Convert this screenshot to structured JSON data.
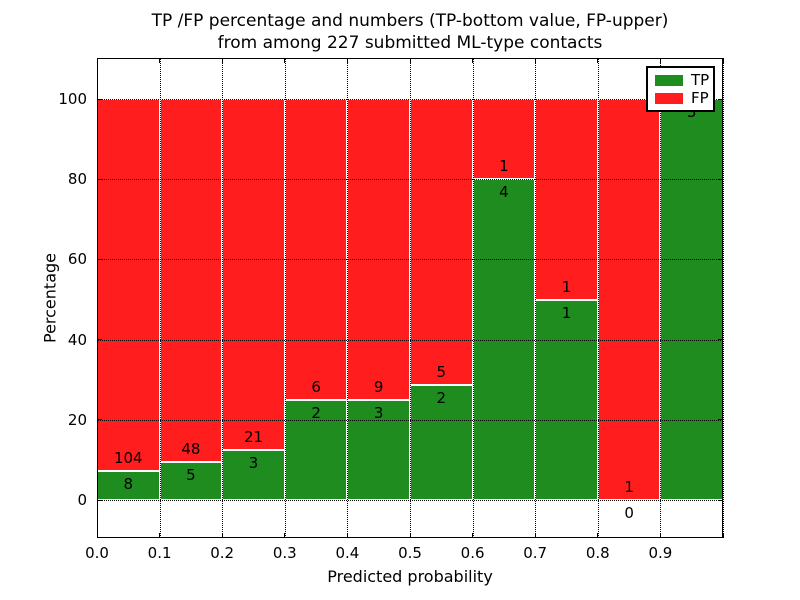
{
  "title": {
    "line1": "TP /FP percentage and numbers (TP-bottom value, FP-upper)",
    "line2": "from among 227 submitted ML-type contacts"
  },
  "axes": {
    "y_label": "Percentage",
    "x_label": "Predicted probability",
    "x_tick_labels": [
      "0.0",
      "0.1",
      "0.2",
      "0.3",
      "0.4",
      "0.5",
      "0.6",
      "0.7",
      "0.8",
      "0.9"
    ],
    "y_tick_labels": [
      "0",
      "20",
      "40",
      "60",
      "80",
      "100"
    ]
  },
  "legend": {
    "items": [
      {
        "label": "TP",
        "color": "#1e8c1e"
      },
      {
        "label": "FP",
        "color": "#ff1d1d"
      }
    ]
  },
  "chart_data": {
    "type": "bar",
    "stacked": true,
    "title": "TP /FP percentage and numbers (TP-bottom value, FP-upper) from among 227 submitted ML-type contacts",
    "xlabel": "Predicted probability",
    "ylabel": "Percentage",
    "total_contacts": 227,
    "bin_edges": [
      0.0,
      0.1,
      0.2,
      0.3,
      0.4,
      0.5,
      0.6,
      0.7,
      0.8,
      0.9,
      1.0
    ],
    "categories": [
      "0.0-0.1",
      "0.1-0.2",
      "0.2-0.3",
      "0.3-0.4",
      "0.4-0.5",
      "0.5-0.6",
      "0.6-0.7",
      "0.7-0.8",
      "0.8-0.9",
      "0.9-1.0"
    ],
    "series": [
      {
        "name": "TP",
        "color": "#1e8c1e",
        "counts": [
          8,
          5,
          3,
          2,
          3,
          2,
          4,
          1,
          0,
          3
        ],
        "pct": [
          7.14,
          9.43,
          12.5,
          25.0,
          25.0,
          28.57,
          80.0,
          50.0,
          0.0,
          100.0
        ]
      },
      {
        "name": "FP",
        "color": "#ff1d1d",
        "counts": [
          104,
          48,
          21,
          6,
          9,
          5,
          1,
          1,
          1,
          0
        ],
        "pct": [
          92.86,
          90.57,
          87.5,
          75.0,
          75.0,
          71.43,
          20.0,
          50.0,
          100.0,
          0.0
        ]
      }
    ],
    "x_ticks": [
      0.0,
      0.1,
      0.2,
      0.3,
      0.4,
      0.5,
      0.6,
      0.7,
      0.8,
      0.9,
      1.0
    ],
    "y_ticks": [
      0,
      20,
      40,
      60,
      80,
      100
    ],
    "xlim": [
      0.0,
      1.0
    ],
    "ylim": [
      -9.5,
      110.2
    ],
    "grid": "dotted",
    "legend_position": "upper right"
  }
}
